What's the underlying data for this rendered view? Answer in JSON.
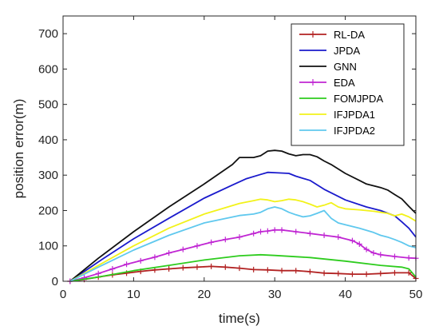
{
  "chart_data": {
    "type": "line",
    "title": "",
    "xlabel": "time(s)",
    "ylabel": "position error(m)",
    "xlim": [
      0,
      50
    ],
    "ylim": [
      0,
      750
    ],
    "xticks": [
      0,
      10,
      20,
      30,
      40,
      50
    ],
    "yticks": [
      0,
      100,
      200,
      300,
      400,
      500,
      600,
      700
    ],
    "grid": false,
    "legend_position": "top-right",
    "series": [
      {
        "name": "RL-DA",
        "color": "#b22222",
        "marker": "+",
        "x": [
          1,
          3,
          5,
          7,
          9,
          11,
          13,
          15,
          17,
          19,
          21,
          23,
          25,
          27,
          29,
          31,
          33,
          35,
          37,
          39,
          41,
          43,
          45,
          47,
          49,
          50
        ],
        "y": [
          0,
          5,
          12,
          18,
          23,
          28,
          32,
          35,
          38,
          40,
          42,
          40,
          37,
          33,
          32,
          30,
          30,
          27,
          23,
          22,
          20,
          20,
          22,
          24,
          24,
          8
        ]
      },
      {
        "name": "JPDA",
        "color": "#1a1acc",
        "marker": "",
        "x": [
          1,
          5,
          10,
          15,
          20,
          24,
          26,
          28,
          29,
          30,
          32,
          33,
          35,
          37,
          40,
          43,
          45,
          47,
          48,
          49,
          50
        ],
        "y": [
          0,
          55,
          120,
          178,
          235,
          272,
          290,
          302,
          308,
          307,
          305,
          297,
          285,
          260,
          230,
          210,
          200,
          185,
          168,
          150,
          125
        ]
      },
      {
        "name": "GNN",
        "color": "#111111",
        "marker": "",
        "x": [
          1,
          5,
          10,
          15,
          20,
          24,
          25,
          26,
          27,
          28,
          29,
          30,
          31,
          32,
          33,
          34,
          35,
          36,
          37,
          38,
          40,
          42,
          43,
          45,
          46,
          47,
          48,
          49,
          50
        ],
        "y": [
          0,
          65,
          140,
          210,
          275,
          330,
          350,
          350,
          350,
          355,
          368,
          370,
          368,
          360,
          355,
          358,
          358,
          352,
          340,
          330,
          305,
          285,
          275,
          265,
          258,
          245,
          233,
          212,
          192
        ]
      },
      {
        "name": "EDA",
        "color": "#c026d3",
        "marker": "+",
        "x": [
          1,
          3,
          5,
          7,
          9,
          11,
          13,
          15,
          17,
          19,
          21,
          23,
          25,
          27,
          28,
          29,
          30,
          31,
          33,
          35,
          37,
          39,
          41,
          42,
          43,
          44,
          45,
          47,
          49,
          50
        ],
        "y": [
          0,
          10,
          22,
          35,
          48,
          58,
          68,
          80,
          90,
          100,
          110,
          118,
          125,
          135,
          140,
          142,
          145,
          145,
          140,
          135,
          130,
          125,
          115,
          105,
          90,
          80,
          75,
          70,
          66,
          65
        ]
      },
      {
        "name": "FOMJPDA",
        "color": "#2ecc1e",
        "marker": "",
        "x": [
          1,
          5,
          10,
          15,
          20,
          25,
          28,
          30,
          35,
          40,
          45,
          48,
          49,
          50
        ],
        "y": [
          0,
          12,
          30,
          45,
          60,
          72,
          75,
          73,
          67,
          57,
          45,
          40,
          35,
          12
        ]
      },
      {
        "name": "IFJPDA1",
        "color": "#f2f21a",
        "marker": "",
        "x": [
          1,
          5,
          10,
          15,
          20,
          25,
          27,
          28,
          29,
          30,
          31,
          32,
          33,
          34,
          35,
          36,
          37,
          38,
          39,
          40,
          42,
          44,
          45,
          46,
          47,
          48,
          49,
          50
        ],
        "y": [
          0,
          45,
          100,
          150,
          190,
          220,
          228,
          232,
          230,
          225,
          228,
          232,
          230,
          225,
          218,
          210,
          215,
          222,
          210,
          205,
          202,
          198,
          195,
          192,
          185,
          190,
          182,
          170
        ]
      },
      {
        "name": "IFJPDA2",
        "color": "#5fc8ee",
        "marker": "",
        "x": [
          1,
          5,
          10,
          15,
          20,
          25,
          27,
          28,
          29,
          30,
          31,
          32,
          33,
          34,
          35,
          36,
          37,
          38,
          39,
          40,
          42,
          44,
          45,
          46,
          47,
          48,
          49,
          50
        ],
        "y": [
          0,
          40,
          88,
          130,
          165,
          186,
          190,
          195,
          205,
          210,
          205,
          195,
          188,
          182,
          185,
          192,
          200,
          178,
          165,
          160,
          150,
          138,
          130,
          125,
          118,
          110,
          100,
          95
        ]
      }
    ]
  }
}
